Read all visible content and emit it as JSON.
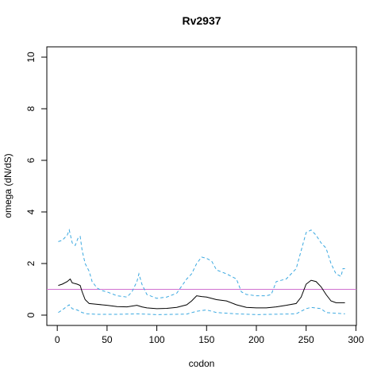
{
  "chart_data": {
    "type": "line",
    "title": "Rv2937",
    "x_label": "codon",
    "y_label": "omega (dN/dS)",
    "xlim": [
      -10.5,
      300.5
    ],
    "ylim": [
      -0.4,
      10.4
    ],
    "xticks": [
      0,
      50,
      100,
      150,
      200,
      250,
      300
    ],
    "yticks": [
      0,
      2,
      4,
      6,
      8,
      10
    ],
    "hline": {
      "value": 1,
      "color": "#d070d0"
    },
    "series": [
      {
        "name": "omega",
        "color": "#000000",
        "dashed": false,
        "x": [
          1,
          5,
          10,
          13,
          15,
          20,
          23,
          25,
          28,
          32,
          40,
          50,
          60,
          70,
          80,
          85,
          90,
          100,
          110,
          120,
          130,
          135,
          140,
          145,
          150,
          160,
          170,
          180,
          190,
          200,
          210,
          220,
          230,
          240,
          245,
          250,
          255,
          260,
          265,
          270,
          275,
          280,
          289
        ],
        "values": [
          1.15,
          1.2,
          1.3,
          1.4,
          1.25,
          1.2,
          1.15,
          0.9,
          0.6,
          0.45,
          0.42,
          0.38,
          0.33,
          0.32,
          0.38,
          0.32,
          0.28,
          0.25,
          0.26,
          0.3,
          0.4,
          0.55,
          0.75,
          0.72,
          0.7,
          0.6,
          0.55,
          0.4,
          0.3,
          0.28,
          0.28,
          0.32,
          0.38,
          0.45,
          0.7,
          1.2,
          1.35,
          1.3,
          1.1,
          0.8,
          0.55,
          0.48,
          0.48
        ]
      },
      {
        "name": "upper",
        "color": "#3aa8e0",
        "dashed": true,
        "x": [
          1,
          5,
          10,
          12,
          15,
          18,
          21,
          23,
          25,
          28,
          32,
          35,
          40,
          45,
          50,
          60,
          70,
          75,
          80,
          82,
          85,
          90,
          100,
          110,
          120,
          130,
          135,
          140,
          145,
          150,
          155,
          160,
          170,
          180,
          185,
          190,
          200,
          210,
          215,
          220,
          230,
          240,
          245,
          250,
          255,
          260,
          265,
          270,
          275,
          280,
          285,
          287,
          289
        ],
        "values": [
          2.85,
          2.9,
          3.1,
          3.3,
          2.8,
          2.7,
          3.0,
          3.05,
          2.5,
          2.0,
          1.7,
          1.3,
          1.05,
          0.95,
          0.9,
          0.75,
          0.7,
          0.9,
          1.3,
          1.6,
          1.2,
          0.8,
          0.65,
          0.7,
          0.85,
          1.4,
          1.6,
          2.0,
          2.25,
          2.2,
          2.1,
          1.75,
          1.6,
          1.4,
          0.9,
          0.8,
          0.75,
          0.75,
          0.8,
          1.3,
          1.4,
          1.8,
          2.5,
          3.2,
          3.3,
          3.1,
          2.8,
          2.6,
          2.0,
          1.6,
          1.5,
          1.8,
          1.8
        ]
      },
      {
        "name": "lower",
        "color": "#3aa8e0",
        "dashed": true,
        "x": [
          1,
          5,
          10,
          12,
          15,
          20,
          25,
          30,
          40,
          60,
          80,
          100,
          130,
          140,
          150,
          160,
          180,
          200,
          240,
          250,
          255,
          265,
          270,
          289
        ],
        "values": [
          0.1,
          0.2,
          0.35,
          0.4,
          0.25,
          0.2,
          0.1,
          0.05,
          0.03,
          0.03,
          0.05,
          0.02,
          0.04,
          0.15,
          0.2,
          0.1,
          0.05,
          0.02,
          0.05,
          0.25,
          0.3,
          0.25,
          0.1,
          0.05
        ]
      }
    ]
  }
}
